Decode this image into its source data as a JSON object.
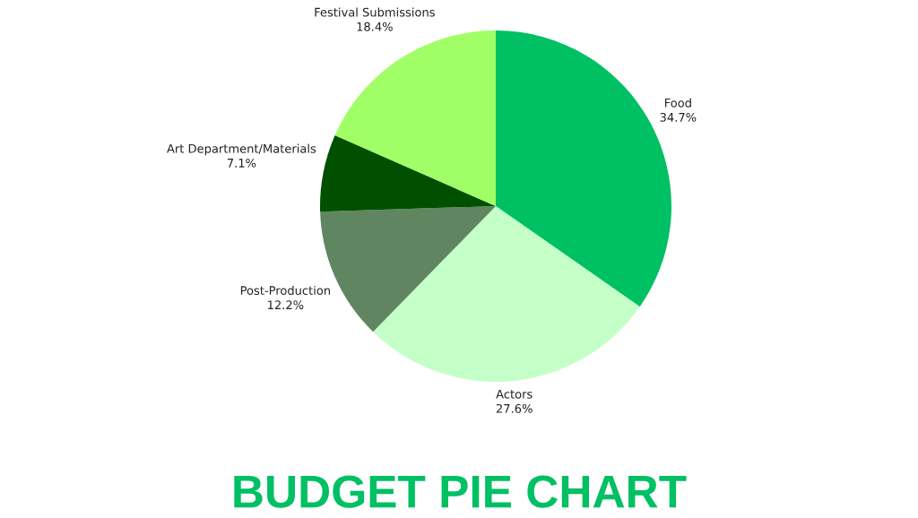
{
  "chart_data": {
    "type": "pie",
    "title": "BUDGET PIE CHART",
    "categories": [
      "Food",
      "Actors",
      "Post-Production",
      "Art Department/Materials",
      "Festival Submissions"
    ],
    "values": [
      34.7,
      27.6,
      12.2,
      7.1,
      18.4
    ],
    "value_labels": [
      "34.7%",
      "27.6%",
      "12.2%",
      "7.1%",
      "18.4%"
    ],
    "colors": [
      "#00c064",
      "#c5ffc8",
      "#5f8660",
      "#005000",
      "#a0ff66"
    ]
  }
}
